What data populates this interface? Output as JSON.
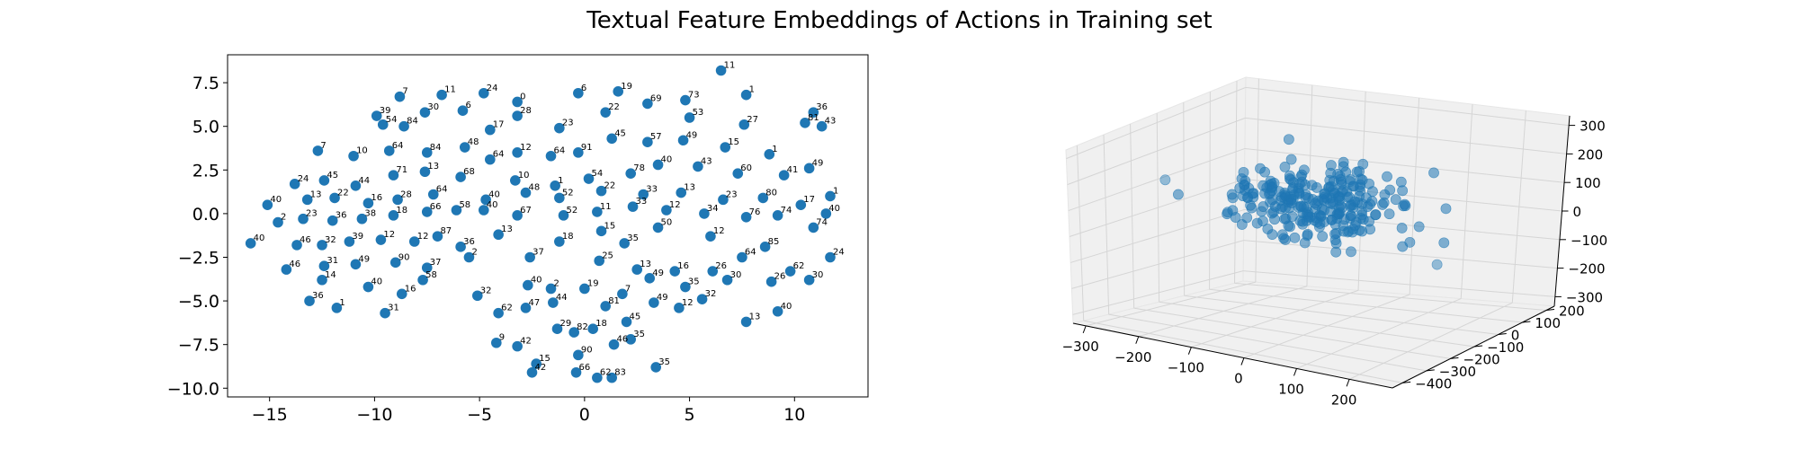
{
  "figure_title": "Textual Feature Embeddings of Actions in Training set",
  "colors": {
    "point": "#1f77b4",
    "pane": "#f0f0f0",
    "grid": "#d5d5d5"
  },
  "chart_data": [
    {
      "type": "scatter",
      "title": "",
      "xlabel": "",
      "ylabel": "",
      "xlim": [
        -17,
        13.5
      ],
      "ylim": [
        -10.5,
        9.1
      ],
      "xticks": [
        -15,
        -10,
        -5,
        0,
        5,
        10
      ],
      "yticks": [
        -10.0,
        -7.5,
        -5.0,
        -2.5,
        0.0,
        2.5,
        5.0,
        7.5
      ],
      "tick_labels_x": [
        "−15",
        "−10",
        "−5",
        "0",
        "5",
        "10"
      ],
      "tick_labels_y": [
        "−10.0",
        "−7.5",
        "−5.0",
        "−2.5",
        "0.0",
        "2.5",
        "5.0",
        "7.5"
      ],
      "grid": false,
      "legend": "none",
      "points": [
        {
          "x": 6.5,
          "y": 8.2,
          "label": "11"
        },
        {
          "x": -8.8,
          "y": 6.7,
          "label": "7"
        },
        {
          "x": -6.8,
          "y": 6.8,
          "label": "11"
        },
        {
          "x": -4.8,
          "y": 6.9,
          "label": "24"
        },
        {
          "x": -3.2,
          "y": 6.4,
          "label": "0"
        },
        {
          "x": -0.3,
          "y": 6.9,
          "label": "6"
        },
        {
          "x": 1.6,
          "y": 7.0,
          "label": "19"
        },
        {
          "x": 7.7,
          "y": 6.8,
          "label": "1"
        },
        {
          "x": 4.8,
          "y": 6.5,
          "label": "73"
        },
        {
          "x": -3.2,
          "y": 5.6,
          "label": "28"
        },
        {
          "x": -5.8,
          "y": 5.9,
          "label": "6"
        },
        {
          "x": -9.9,
          "y": 5.6,
          "label": "39"
        },
        {
          "x": -9.6,
          "y": 5.1,
          "label": "54"
        },
        {
          "x": -8.6,
          "y": 5.0,
          "label": "84"
        },
        {
          "x": -7.6,
          "y": 5.8,
          "label": "30"
        },
        {
          "x": -4.5,
          "y": 4.8,
          "label": "17"
        },
        {
          "x": -1.2,
          "y": 4.9,
          "label": "23"
        },
        {
          "x": 1.0,
          "y": 5.8,
          "label": "22"
        },
        {
          "x": 3.0,
          "y": 6.3,
          "label": "69"
        },
        {
          "x": 5.0,
          "y": 5.5,
          "label": "53"
        },
        {
          "x": 7.6,
          "y": 5.1,
          "label": "27"
        },
        {
          "x": 10.5,
          "y": 5.2,
          "label": "81"
        },
        {
          "x": 11.3,
          "y": 5.0,
          "label": "43"
        },
        {
          "x": 10.9,
          "y": 5.8,
          "label": "36"
        },
        {
          "x": -12.7,
          "y": 3.6,
          "label": "7"
        },
        {
          "x": -11.0,
          "y": 3.3,
          "label": "10"
        },
        {
          "x": -9.3,
          "y": 3.6,
          "label": "64"
        },
        {
          "x": -7.5,
          "y": 3.5,
          "label": "84"
        },
        {
          "x": -5.7,
          "y": 3.8,
          "label": "48"
        },
        {
          "x": -4.5,
          "y": 3.1,
          "label": "64"
        },
        {
          "x": -3.2,
          "y": 3.5,
          "label": "12"
        },
        {
          "x": -1.6,
          "y": 3.3,
          "label": "64"
        },
        {
          "x": -0.3,
          "y": 3.5,
          "label": "91"
        },
        {
          "x": 1.3,
          "y": 4.3,
          "label": "45"
        },
        {
          "x": 3.0,
          "y": 4.1,
          "label": "57"
        },
        {
          "x": 4.7,
          "y": 4.2,
          "label": "49"
        },
        {
          "x": 6.7,
          "y": 3.8,
          "label": "15"
        },
        {
          "x": 8.8,
          "y": 3.4,
          "label": "1"
        },
        {
          "x": 10.7,
          "y": 2.6,
          "label": "49"
        },
        {
          "x": -13.8,
          "y": 1.7,
          "label": "24"
        },
        {
          "x": -12.4,
          "y": 1.9,
          "label": "45"
        },
        {
          "x": -10.9,
          "y": 1.6,
          "label": "44"
        },
        {
          "x": -9.1,
          "y": 2.2,
          "label": "71"
        },
        {
          "x": -7.6,
          "y": 2.4,
          "label": "13"
        },
        {
          "x": -5.9,
          "y": 2.1,
          "label": "68"
        },
        {
          "x": -3.3,
          "y": 1.9,
          "label": "10"
        },
        {
          "x": -1.4,
          "y": 1.6,
          "label": "1"
        },
        {
          "x": 0.2,
          "y": 2.0,
          "label": "54"
        },
        {
          "x": 2.2,
          "y": 2.3,
          "label": "78"
        },
        {
          "x": 3.5,
          "y": 2.8,
          "label": "40"
        },
        {
          "x": 5.4,
          "y": 2.7,
          "label": "43"
        },
        {
          "x": 7.3,
          "y": 2.3,
          "label": "60"
        },
        {
          "x": 9.5,
          "y": 2.2,
          "label": "41"
        },
        {
          "x": 11.7,
          "y": 1.0,
          "label": "1"
        },
        {
          "x": -15.1,
          "y": 0.5,
          "label": "40"
        },
        {
          "x": -13.2,
          "y": 0.8,
          "label": "13"
        },
        {
          "x": -11.9,
          "y": 0.9,
          "label": "22"
        },
        {
          "x": -10.3,
          "y": 0.6,
          "label": "16"
        },
        {
          "x": -8.9,
          "y": 0.8,
          "label": "28"
        },
        {
          "x": -7.2,
          "y": 1.1,
          "label": "64"
        },
        {
          "x": -4.7,
          "y": 0.8,
          "label": "40"
        },
        {
          "x": -2.8,
          "y": 1.2,
          "label": "48"
        },
        {
          "x": -1.2,
          "y": 0.9,
          "label": "52"
        },
        {
          "x": 0.8,
          "y": 1.3,
          "label": "22"
        },
        {
          "x": 2.8,
          "y": 1.1,
          "label": "33"
        },
        {
          "x": 4.6,
          "y": 1.2,
          "label": "13"
        },
        {
          "x": 6.6,
          "y": 0.8,
          "label": "23"
        },
        {
          "x": 8.5,
          "y": 0.9,
          "label": "80"
        },
        {
          "x": 10.3,
          "y": 0.5,
          "label": "17"
        },
        {
          "x": -14.6,
          "y": -0.5,
          "label": "2"
        },
        {
          "x": -13.4,
          "y": -0.3,
          "label": "23"
        },
        {
          "x": -12.0,
          "y": -0.4,
          "label": "36"
        },
        {
          "x": -10.6,
          "y": -0.3,
          "label": "38"
        },
        {
          "x": -9.1,
          "y": -0.1,
          "label": "18"
        },
        {
          "x": -7.5,
          "y": 0.1,
          "label": "66"
        },
        {
          "x": -6.1,
          "y": 0.2,
          "label": "58"
        },
        {
          "x": -4.8,
          "y": 0.2,
          "label": "40"
        },
        {
          "x": -3.2,
          "y": -0.1,
          "label": "67"
        },
        {
          "x": -1.0,
          "y": -0.1,
          "label": "52"
        },
        {
          "x": 0.6,
          "y": 0.1,
          "label": "11"
        },
        {
          "x": 2.3,
          "y": 0.4,
          "label": "33"
        },
        {
          "x": 3.9,
          "y": 0.2,
          "label": "12"
        },
        {
          "x": 5.7,
          "y": 0.0,
          "label": "34"
        },
        {
          "x": 7.7,
          "y": -0.2,
          "label": "76"
        },
        {
          "x": 9.2,
          "y": -0.1,
          "label": "74"
        },
        {
          "x": 11.5,
          "y": 0.0,
          "label": "40"
        },
        {
          "x": -15.9,
          "y": -1.7,
          "label": "40"
        },
        {
          "x": -13.7,
          "y": -1.8,
          "label": "46"
        },
        {
          "x": -12.5,
          "y": -1.8,
          "label": "32"
        },
        {
          "x": -11.2,
          "y": -1.6,
          "label": "39"
        },
        {
          "x": -9.7,
          "y": -1.5,
          "label": "12"
        },
        {
          "x": -8.1,
          "y": -1.6,
          "label": "12"
        },
        {
          "x": -7.0,
          "y": -1.3,
          "label": "87"
        },
        {
          "x": -5.9,
          "y": -1.9,
          "label": "36"
        },
        {
          "x": -4.1,
          "y": -1.2,
          "label": "13"
        },
        {
          "x": -1.2,
          "y": -1.6,
          "label": "18"
        },
        {
          "x": 0.8,
          "y": -1.0,
          "label": "15"
        },
        {
          "x": 1.9,
          "y": -1.7,
          "label": "35"
        },
        {
          "x": 3.5,
          "y": -0.8,
          "label": "50"
        },
        {
          "x": 6.0,
          "y": -1.3,
          "label": "12"
        },
        {
          "x": 8.6,
          "y": -1.9,
          "label": "85"
        },
        {
          "x": 10.9,
          "y": -0.8,
          "label": "74"
        },
        {
          "x": -14.2,
          "y": -3.2,
          "label": "46"
        },
        {
          "x": -12.4,
          "y": -3.0,
          "label": "31"
        },
        {
          "x": -10.9,
          "y": -2.9,
          "label": "49"
        },
        {
          "x": -9.0,
          "y": -2.8,
          "label": "90"
        },
        {
          "x": -7.5,
          "y": -3.1,
          "label": "37"
        },
        {
          "x": -5.5,
          "y": -2.5,
          "label": "2"
        },
        {
          "x": -2.6,
          "y": -2.5,
          "label": "37"
        },
        {
          "x": 0.7,
          "y": -2.7,
          "label": "25"
        },
        {
          "x": 2.5,
          "y": -3.2,
          "label": "13"
        },
        {
          "x": 4.3,
          "y": -3.3,
          "label": "16"
        },
        {
          "x": 6.1,
          "y": -3.3,
          "label": "26"
        },
        {
          "x": 7.5,
          "y": -2.5,
          "label": "64"
        },
        {
          "x": 9.8,
          "y": -3.3,
          "label": "62"
        },
        {
          "x": 11.7,
          "y": -2.5,
          "label": "24"
        },
        {
          "x": -12.5,
          "y": -3.8,
          "label": "14"
        },
        {
          "x": -10.3,
          "y": -4.2,
          "label": "40"
        },
        {
          "x": -8.7,
          "y": -4.6,
          "label": "16"
        },
        {
          "x": -7.7,
          "y": -3.8,
          "label": "58"
        },
        {
          "x": -5.1,
          "y": -4.7,
          "label": "32"
        },
        {
          "x": -2.7,
          "y": -4.1,
          "label": "40"
        },
        {
          "x": -1.6,
          "y": -4.3,
          "label": "2"
        },
        {
          "x": 0.0,
          "y": -4.3,
          "label": "19"
        },
        {
          "x": 1.8,
          "y": -4.6,
          "label": "7"
        },
        {
          "x": 3.1,
          "y": -3.7,
          "label": "49"
        },
        {
          "x": 4.8,
          "y": -4.2,
          "label": "35"
        },
        {
          "x": 6.8,
          "y": -3.8,
          "label": "30"
        },
        {
          "x": 8.9,
          "y": -3.9,
          "label": "26"
        },
        {
          "x": 10.7,
          "y": -3.8,
          "label": "30"
        },
        {
          "x": -13.1,
          "y": -5.0,
          "label": "36"
        },
        {
          "x": -11.8,
          "y": -5.4,
          "label": "1"
        },
        {
          "x": -9.5,
          "y": -5.7,
          "label": "31"
        },
        {
          "x": -4.1,
          "y": -5.7,
          "label": "62"
        },
        {
          "x": -2.8,
          "y": -5.4,
          "label": "47"
        },
        {
          "x": -1.5,
          "y": -5.1,
          "label": "44"
        },
        {
          "x": 1.0,
          "y": -5.3,
          "label": "81"
        },
        {
          "x": 3.3,
          "y": -5.1,
          "label": "49"
        },
        {
          "x": 4.5,
          "y": -5.4,
          "label": "12"
        },
        {
          "x": 5.6,
          "y": -4.9,
          "label": "32"
        },
        {
          "x": 7.7,
          "y": -6.2,
          "label": "13"
        },
        {
          "x": 9.2,
          "y": -5.6,
          "label": "40"
        },
        {
          "x": -4.2,
          "y": -7.4,
          "label": "9"
        },
        {
          "x": -3.2,
          "y": -7.6,
          "label": "42"
        },
        {
          "x": -1.3,
          "y": -6.6,
          "label": "29"
        },
        {
          "x": -0.5,
          "y": -6.8,
          "label": "82"
        },
        {
          "x": 0.4,
          "y": -6.6,
          "label": "18"
        },
        {
          "x": 2.0,
          "y": -6.2,
          "label": "45"
        },
        {
          "x": 2.2,
          "y": -7.2,
          "label": "35"
        },
        {
          "x": 1.4,
          "y": -7.5,
          "label": "46"
        },
        {
          "x": -2.3,
          "y": -8.6,
          "label": "15"
        },
        {
          "x": -0.3,
          "y": -8.1,
          "label": "90"
        },
        {
          "x": 0.6,
          "y": -9.4,
          "label": "62"
        },
        {
          "x": 1.3,
          "y": -9.4,
          "label": "83"
        },
        {
          "x": 3.4,
          "y": -8.8,
          "label": "35"
        },
        {
          "x": -0.4,
          "y": -9.1,
          "label": "66"
        },
        {
          "x": -2.5,
          "y": -9.1,
          "label": "42"
        }
      ]
    },
    {
      "type": "scatter",
      "projection": "3d",
      "title": "",
      "xlim": [
        -350,
        300
      ],
      "ylim": [
        -450,
        250
      ],
      "zlim": [
        -350,
        350
      ],
      "xticks": [
        "−300",
        "−200",
        "−100",
        "0",
        "100",
        "200"
      ],
      "yticks": [
        "200",
        "100",
        "0",
        "−100",
        "−200",
        "−300",
        "−400"
      ],
      "zticks": [
        "300",
        "200",
        "100",
        "0",
        "−100",
        "−200",
        "−300"
      ],
      "grid": true,
      "outliers": [
        {
          "x": -330,
          "y": 10,
          "z": -20
        },
        {
          "x": -90,
          "y": -250,
          "z": -200
        },
        {
          "x": 130,
          "y": -200,
          "z": -230
        }
      ]
    }
  ]
}
